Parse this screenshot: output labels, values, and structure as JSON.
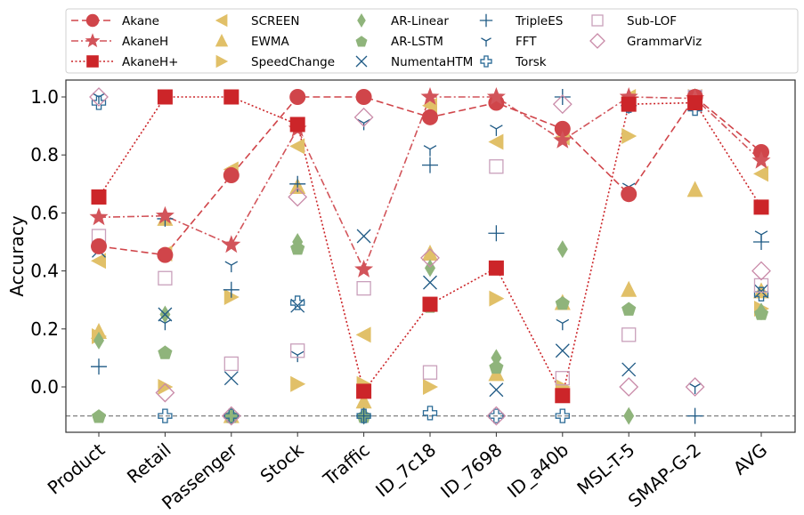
{
  "chart_data": {
    "type": "scatter",
    "title": "",
    "xlabel": "",
    "ylabel": "Accuracy",
    "ylim": [
      -0.15,
      1.05
    ],
    "yticks": [
      "0.0",
      "0.2",
      "0.4",
      "0.6",
      "0.8",
      "1.0"
    ],
    "ytick_values": [
      0.0,
      0.2,
      0.4,
      0.6,
      0.8,
      1.0
    ],
    "grid": false,
    "legend_position": "top",
    "reference_line": {
      "y": -0.1,
      "style": "dashed",
      "color": "#808080"
    },
    "categories": [
      "Product",
      "Retail",
      "Passenger",
      "Stock",
      "Traffic",
      "ID_7c18",
      "ID_7698",
      "ID_a40b",
      "MSL-T-5",
      "SMAP-G-2",
      "AVG"
    ],
    "series": [
      {
        "name": "Akane",
        "marker": "circle",
        "line": "dashed",
        "color": "#d0454a",
        "values": [
          0.485,
          0.455,
          0.73,
          1.0,
          1.0,
          0.93,
          0.98,
          0.89,
          0.665,
          1.0,
          0.81
        ]
      },
      {
        "name": "AkaneH",
        "marker": "star",
        "line": "dashdot",
        "color": "#d2545a",
        "values": [
          0.585,
          0.59,
          0.49,
          0.89,
          0.405,
          1.0,
          1.0,
          0.85,
          1.0,
          0.995,
          0.78
        ]
      },
      {
        "name": "AkaneH+",
        "marker": "square",
        "line": "dotted",
        "color": "#cc2529",
        "values": [
          0.655,
          1.0,
          1.0,
          0.905,
          -0.015,
          0.285,
          0.41,
          -0.03,
          0.975,
          0.98,
          0.62
        ]
      },
      {
        "name": "SCREEN",
        "marker": "triangle-left",
        "line": "none",
        "color": "#e1c068",
        "values": [
          0.435,
          0.46,
          0.75,
          0.83,
          0.18,
          0.97,
          0.845,
          0.86,
          1.0,
          1.0,
          0.735
        ]
      },
      {
        "name": "EWMA",
        "marker": "triangle-up",
        "line": "none",
        "color": "#e1c068",
        "values": [
          0.19,
          0.58,
          -0.1,
          0.69,
          -0.05,
          0.46,
          0.045,
          0.29,
          0.335,
          0.68,
          0.33
        ]
      },
      {
        "name": "SpeedChange",
        "marker": "triangle-right",
        "line": "none",
        "color": "#e1c068",
        "values": [
          0.175,
          0.0,
          0.31,
          0.01,
          0.01,
          0.0,
          0.305,
          0.0,
          0.865,
          1.0,
          0.27
        ]
      },
      {
        "name": "AR-Linear",
        "marker": "diamond-thin",
        "line": "none",
        "color": "#8fb47b",
        "values": [
          0.16,
          0.25,
          -0.1,
          0.5,
          -0.1,
          0.41,
          0.1,
          0.475,
          -0.1,
          1.0,
          0.26
        ]
      },
      {
        "name": "AR-LSTM",
        "marker": "pentagon",
        "line": "none",
        "color": "#8fb47b",
        "values": [
          -0.1,
          0.12,
          -0.1,
          0.48,
          -0.1,
          0.28,
          0.07,
          0.29,
          0.27,
          1.0,
          0.255
        ]
      },
      {
        "name": "NumentaHTM",
        "marker": "x",
        "line": "none",
        "color": "#1f5a85",
        "values": [
          0.47,
          0.25,
          0.03,
          0.28,
          0.52,
          0.36,
          -0.01,
          0.125,
          0.06,
          1.0,
          0.33
        ]
      },
      {
        "name": "TripleES",
        "marker": "plus",
        "line": "none",
        "color": "#1f5a85",
        "values": [
          0.07,
          0.58,
          0.335,
          0.7,
          -0.1,
          0.765,
          0.53,
          1.0,
          0.97,
          -0.1,
          0.5
        ]
      },
      {
        "name": "FFT",
        "marker": "tri-down",
        "line": "none",
        "color": "#1f5a85",
        "values": [
          1.0,
          0.22,
          0.42,
          0.11,
          0.91,
          0.82,
          0.89,
          0.22,
          0.69,
          0.0,
          0.525
        ]
      },
      {
        "name": "Torsk",
        "marker": "plus-hollow",
        "line": "none",
        "color": "#2a6a96",
        "values": [
          0.98,
          -0.1,
          -0.1,
          0.29,
          -0.1,
          -0.09,
          -0.1,
          -0.1,
          0.97,
          0.96,
          0.32
        ]
      },
      {
        "name": "Sub-LOF",
        "marker": "square-hollow",
        "line": "none",
        "color": "#c9a0bb",
        "values": [
          0.52,
          0.375,
          0.08,
          0.125,
          0.34,
          0.05,
          0.76,
          0.03,
          0.18,
          1.0,
          0.35
        ]
      },
      {
        "name": "GrammarViz",
        "marker": "diamond-hollow",
        "line": "none",
        "color": "#c98aa8",
        "values": [
          1.0,
          -0.02,
          -0.1,
          0.655,
          0.93,
          0.445,
          -0.1,
          0.975,
          0.0,
          0.0,
          0.4
        ]
      }
    ]
  }
}
